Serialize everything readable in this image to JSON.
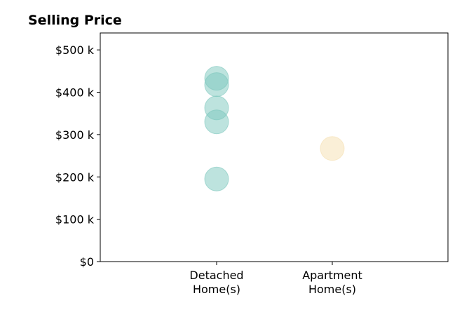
{
  "chart_data": {
    "type": "scatter",
    "title": "Selling Price",
    "xlabel": "",
    "ylabel": "",
    "categories": [
      "Detached\nHome(s)",
      "Apartment\nHome(s)"
    ],
    "ylim": [
      0,
      540000
    ],
    "yticks": [
      {
        "value": 0,
        "label": "$0"
      },
      {
        "value": 100000,
        "label": "$100 k"
      },
      {
        "value": 200000,
        "label": "$200 k"
      },
      {
        "value": 300000,
        "label": "$300 k"
      },
      {
        "value": 400000,
        "label": "$400 k"
      },
      {
        "value": 500000,
        "label": "$500 k"
      }
    ],
    "grid": false,
    "series": [
      {
        "category_index": 0,
        "color": "#7cc7bd",
        "values": [
          433000,
          418000,
          363000,
          330000,
          195000
        ]
      },
      {
        "category_index": 1,
        "color": "#f5e0b0",
        "values": [
          267000
        ]
      }
    ]
  }
}
